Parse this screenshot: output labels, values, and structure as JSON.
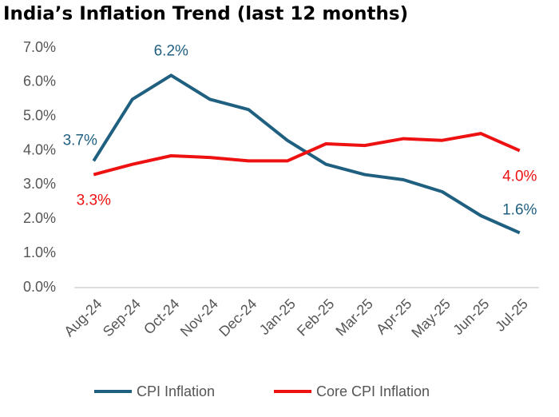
{
  "chart_data": {
    "type": "line",
    "title": "India’s Inflation Trend (last 12 months)",
    "categories": [
      "Aug-24",
      "Sep-24",
      "Oct-24",
      "Nov-24",
      "Dec-24",
      "Jan-25",
      "Feb-25",
      "Mar-25",
      "Apr-25",
      "May-25",
      "Jun-25",
      "Jul-25"
    ],
    "series": [
      {
        "name": "CPI Inflation",
        "color": "#1f5f80",
        "values": [
          3.7,
          5.5,
          6.2,
          5.5,
          5.2,
          4.3,
          3.6,
          3.3,
          3.15,
          2.8,
          2.1,
          1.6
        ],
        "value_labels": [
          "3.7%",
          null,
          "6.2%",
          null,
          null,
          null,
          null,
          null,
          null,
          null,
          null,
          "1.6%"
        ]
      },
      {
        "name": "Core CPI Inflation",
        "color": "#ee1111",
        "values": [
          3.3,
          3.6,
          3.85,
          3.8,
          3.7,
          3.7,
          4.2,
          4.15,
          4.35,
          4.3,
          4.5,
          4.0
        ],
        "value_labels": [
          "3.3%",
          null,
          null,
          null,
          null,
          null,
          null,
          null,
          null,
          null,
          null,
          "4.0%"
        ]
      }
    ],
    "ylim": [
      0,
      7
    ],
    "yticks": [
      {
        "value": 0,
        "label": "0.0%"
      },
      {
        "value": 1,
        "label": "1.0%"
      },
      {
        "value": 2,
        "label": "2.0%"
      },
      {
        "value": 3,
        "label": "3.0%"
      },
      {
        "value": 4,
        "label": "4.0%"
      },
      {
        "value": 5,
        "label": "5.0%"
      },
      {
        "value": 6,
        "label": "6.0%"
      },
      {
        "value": 7,
        "label": "7.0%"
      }
    ],
    "grid": false,
    "legend": "bottom"
  }
}
